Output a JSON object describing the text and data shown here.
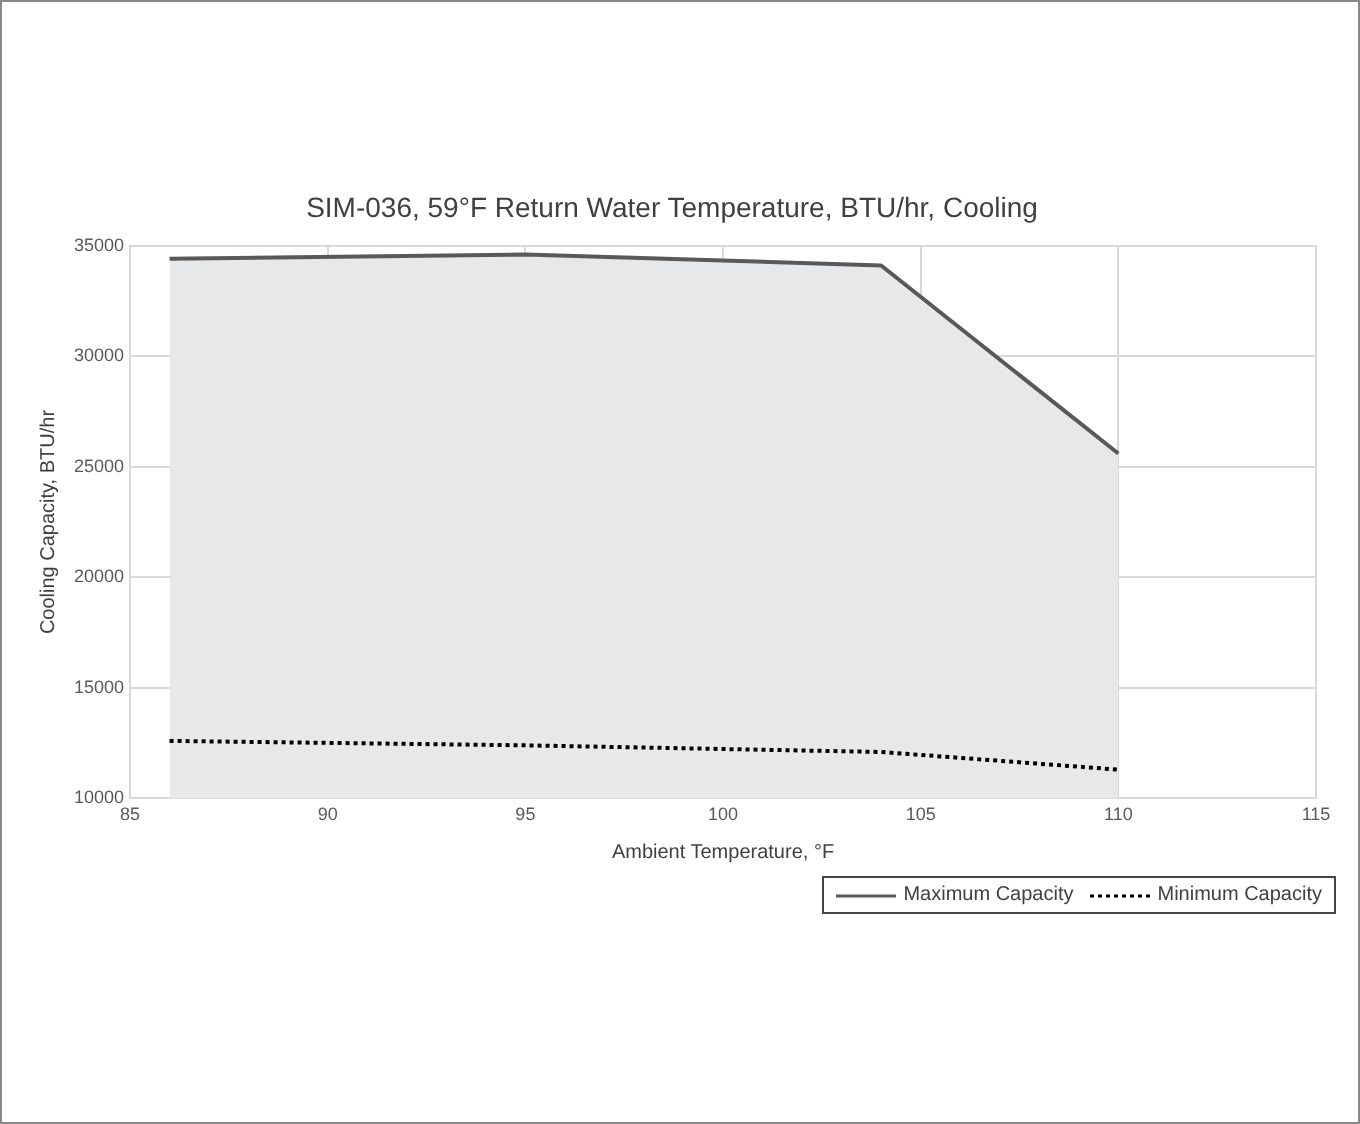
{
  "chart_data": {
    "type": "line",
    "title": "SIM-036, 59°F Return Water Temperature, BTU/hr, Cooling",
    "xlabel": "Ambient Temperature, °F",
    "ylabel": "Cooling Capacity, BTU/hr",
    "x": [
      86,
      95,
      104,
      110
    ],
    "series": [
      {
        "name": "Maximum Capacity",
        "type": "area",
        "color": "#595959",
        "values": [
          34400,
          34600,
          34100,
          25600
        ],
        "line_style": "solid"
      },
      {
        "name": "Minimum Capacity",
        "type": "line",
        "color": "#000000",
        "values": [
          12600,
          12400,
          12100,
          11300
        ],
        "line_style": "dotted"
      }
    ],
    "xlim": [
      85,
      115
    ],
    "xticks": [
      85,
      90,
      95,
      100,
      105,
      110,
      115
    ],
    "ylim": [
      10000,
      35000
    ],
    "yticks": [
      10000,
      15000,
      20000,
      25000,
      30000,
      35000
    ],
    "grid": true,
    "legend": "bottom right",
    "marker": "none"
  }
}
